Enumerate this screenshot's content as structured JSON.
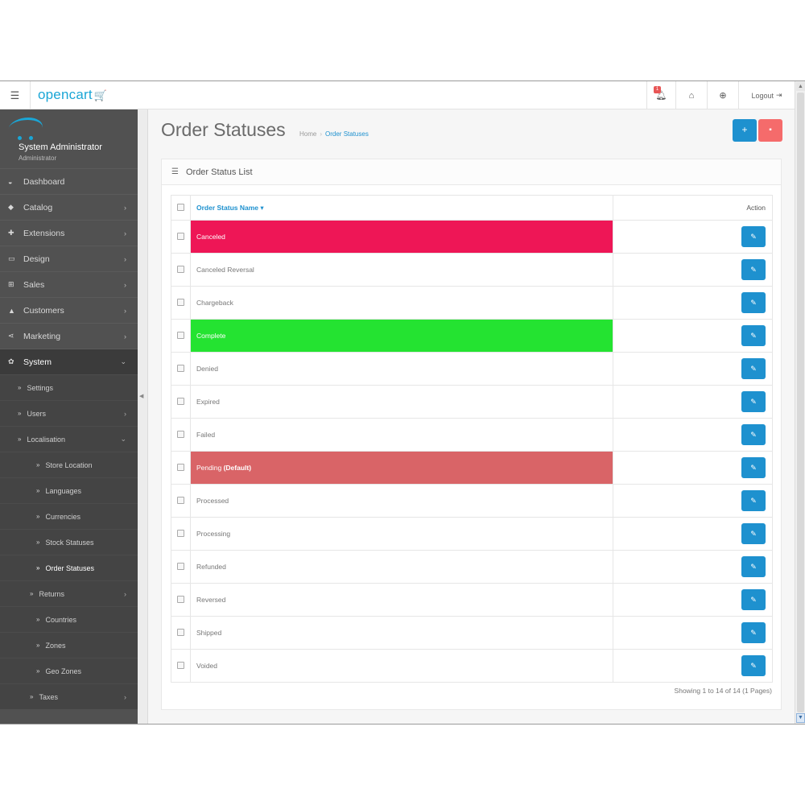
{
  "header": {
    "logo_text": "opencart",
    "logo_cart": "🛒",
    "notification_count": "1",
    "logout_label": "Logout"
  },
  "profile": {
    "name": "System Administrator",
    "role": "Administrator"
  },
  "sidebar": {
    "items": [
      {
        "label": "Dashboard",
        "icon": "dashboard-icon",
        "glyph": "◒",
        "has_children": false
      },
      {
        "label": "Catalog",
        "icon": "tag-icon",
        "glyph": "◆",
        "has_children": true
      },
      {
        "label": "Extensions",
        "icon": "puzzle-icon",
        "glyph": "✚",
        "has_children": true
      },
      {
        "label": "Design",
        "icon": "monitor-icon",
        "glyph": "▭",
        "has_children": true
      },
      {
        "label": "Sales",
        "icon": "cart-icon",
        "glyph": "⊞",
        "has_children": true
      },
      {
        "label": "Customers",
        "icon": "user-icon",
        "glyph": "▲",
        "has_children": true
      },
      {
        "label": "Marketing",
        "icon": "share-icon",
        "glyph": "⋖",
        "has_children": true
      },
      {
        "label": "System",
        "icon": "gear-icon",
        "glyph": "✿",
        "has_children": true
      }
    ],
    "system_children": [
      {
        "label": "Settings",
        "level": 1,
        "has_children": false
      },
      {
        "label": "Users",
        "level": 1,
        "has_children": true
      },
      {
        "label": "Localisation",
        "level": 1,
        "has_children": true,
        "open": true
      },
      {
        "label": "Store Location",
        "level": 2,
        "has_children": false
      },
      {
        "label": "Languages",
        "level": 2,
        "has_children": false
      },
      {
        "label": "Currencies",
        "level": 2,
        "has_children": false
      },
      {
        "label": "Stock Statuses",
        "level": 2,
        "has_children": false
      },
      {
        "label": "Order Statuses",
        "level": 2,
        "has_children": false,
        "current": true
      },
      {
        "label": "Returns",
        "level": 15,
        "has_children": true
      },
      {
        "label": "Countries",
        "level": 2,
        "has_children": false
      },
      {
        "label": "Zones",
        "level": 2,
        "has_children": false
      },
      {
        "label": "Geo Zones",
        "level": 2,
        "has_children": false
      },
      {
        "label": "Taxes",
        "level": 15,
        "has_children": true
      }
    ]
  },
  "page": {
    "title": "Order Statuses",
    "breadcrumb_home": "Home",
    "breadcrumb_sep": "›",
    "breadcrumb_current": "Order Statuses",
    "add_label": "+",
    "delete_label": "▪"
  },
  "panel": {
    "title": "Order Status List"
  },
  "table": {
    "col_name": "Order Status Name",
    "col_name_sort": "▾",
    "col_action": "Action",
    "rows": [
      {
        "name": "Canceled",
        "bg": "#ee1656"
      },
      {
        "name": "Canceled Reversal",
        "bg": ""
      },
      {
        "name": "Chargeback",
        "bg": ""
      },
      {
        "name": "Complete",
        "bg": "#24e331"
      },
      {
        "name": "Denied",
        "bg": ""
      },
      {
        "name": "Expired",
        "bg": ""
      },
      {
        "name": "Failed",
        "bg": ""
      },
      {
        "name": "Pending",
        "suffix": "(Default)",
        "bg": "#d96467"
      },
      {
        "name": "Processed",
        "bg": ""
      },
      {
        "name": "Processing",
        "bg": ""
      },
      {
        "name": "Refunded",
        "bg": ""
      },
      {
        "name": "Reversed",
        "bg": ""
      },
      {
        "name": "Shipped",
        "bg": ""
      },
      {
        "name": "Voided",
        "bg": ""
      }
    ]
  },
  "pagination": {
    "text": "Showing 1 to 14 of 14 (1 Pages)"
  },
  "colors": {
    "primary": "#1e91cf",
    "danger": "#f56b6b",
    "sidebar_bg": "#515151"
  }
}
